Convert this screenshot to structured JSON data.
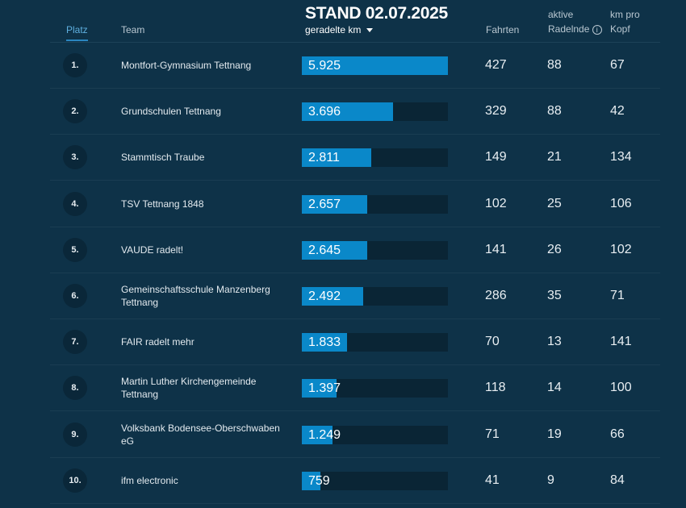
{
  "title": "STAND 02.07.2025",
  "headers": {
    "platz": "Platz",
    "team": "Team",
    "km": "geradelte km",
    "sort_icon": "caret-down",
    "fahrten": "Fahrten",
    "aktive_line1": "aktive",
    "aktive_line2": "Radelnde",
    "info_icon": "info",
    "kmpro_line1": "km pro",
    "kmpro_line2": "Kopf"
  },
  "colors": {
    "background": "#0e3248",
    "bar": "#0a88c9",
    "track": "#0a2535"
  },
  "max_km": 5925,
  "rows": [
    {
      "rank": "1.",
      "team": "Montfort-Gymnasium Tettnang",
      "km": "5.925",
      "km_value": 5925,
      "fahrten": "427",
      "aktive": "88",
      "kmpro": "67"
    },
    {
      "rank": "2.",
      "team": "Grundschulen Tettnang",
      "km": "3.696",
      "km_value": 3696,
      "fahrten": "329",
      "aktive": "88",
      "kmpro": "42"
    },
    {
      "rank": "3.",
      "team": "Stammtisch Traube",
      "km": "2.811",
      "km_value": 2811,
      "fahrten": "149",
      "aktive": "21",
      "kmpro": "134"
    },
    {
      "rank": "4.",
      "team": "TSV Tettnang 1848",
      "km": "2.657",
      "km_value": 2657,
      "fahrten": "102",
      "aktive": "25",
      "kmpro": "106"
    },
    {
      "rank": "5.",
      "team": "VAUDE radelt!",
      "km": "2.645",
      "km_value": 2645,
      "fahrten": "141",
      "aktive": "26",
      "kmpro": "102"
    },
    {
      "rank": "6.",
      "team": "Gemeinschaftsschule Manzenberg Tettnang",
      "km": "2.492",
      "km_value": 2492,
      "fahrten": "286",
      "aktive": "35",
      "kmpro": "71"
    },
    {
      "rank": "7.",
      "team": "FAIR radelt mehr",
      "km": "1.833",
      "km_value": 1833,
      "fahrten": "70",
      "aktive": "13",
      "kmpro": "141"
    },
    {
      "rank": "8.",
      "team": "Martin Luther Kirchengemeinde Tettnang",
      "km": "1.397",
      "km_value": 1397,
      "fahrten": "118",
      "aktive": "14",
      "kmpro": "100"
    },
    {
      "rank": "9.",
      "team": "Volksbank Bodensee-Oberschwaben eG",
      "km": "1.249",
      "km_value": 1249,
      "fahrten": "71",
      "aktive": "19",
      "kmpro": "66"
    },
    {
      "rank": "10.",
      "team": "ifm electronic",
      "km": "759",
      "km_value": 759,
      "fahrten": "41",
      "aktive": "9",
      "kmpro": "84"
    }
  ]
}
